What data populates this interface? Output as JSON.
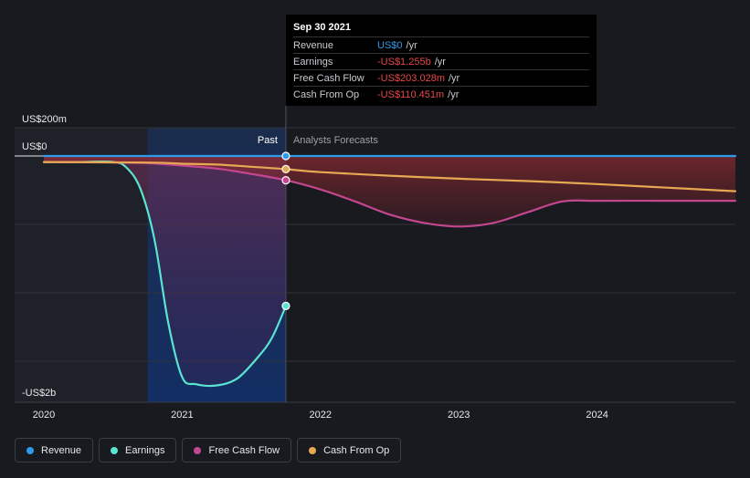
{
  "chart_data": {
    "type": "line",
    "y_axis_labels": [
      "US$200m",
      "US$0",
      "-US$2b"
    ],
    "x_tick_labels": [
      "2020",
      "2021",
      "2022",
      "2023",
      "2024"
    ],
    "region_labels": {
      "past": "Past",
      "forecast": "Analysts Forecasts"
    },
    "xlim": [
      2020.0,
      2025.0
    ],
    "ylim": [
      -2000,
      200
    ],
    "units": "US$m",
    "series": [
      {
        "name": "Revenue",
        "color": "#2e9bea",
        "x": [
          2020.0,
          2021.75,
          2022.0,
          2023.0,
          2024.0,
          2025.0
        ],
        "y": [
          0,
          0,
          0,
          0,
          0,
          0
        ]
      },
      {
        "name": "Earnings",
        "color": "#58e4d0",
        "x": [
          2020.0,
          2020.25,
          2020.5,
          2020.6,
          2020.7,
          2020.8,
          2020.9,
          2021.0,
          2021.1,
          2021.25,
          2021.4,
          2021.55,
          2021.65,
          2021.75
        ],
        "y": [
          -50,
          -50,
          -50,
          -100,
          -280,
          -700,
          -1400,
          -1850,
          -1910,
          -1920,
          -1860,
          -1680,
          -1520,
          -1255
        ]
      },
      {
        "name": "Free Cash Flow",
        "color": "#c3478f",
        "x": [
          2020.0,
          2020.5,
          2020.75,
          2021.0,
          2021.25,
          2021.5,
          2021.75,
          2022.0,
          2022.25,
          2022.5,
          2022.75,
          2023.0,
          2023.25,
          2023.5,
          2023.75,
          2024.0,
          2024.5,
          2025.0
        ],
        "y": [
          -50,
          -55,
          -60,
          -80,
          -105,
          -150,
          -203,
          -280,
          -380,
          -490,
          -560,
          -590,
          -560,
          -470,
          -380,
          -375,
          -375,
          -375
        ]
      },
      {
        "name": "Cash From Op",
        "color": "#e7a852",
        "x": [
          2020.0,
          2020.75,
          2021.0,
          2021.25,
          2021.5,
          2021.75,
          2022.0,
          2022.5,
          2023.0,
          2023.5,
          2024.0,
          2024.5,
          2025.0
        ],
        "y": [
          -50,
          -55,
          -65,
          -72,
          -90,
          -110,
          -135,
          -165,
          -190,
          -210,
          -235,
          -265,
          -295
        ]
      }
    ],
    "tooltip": {
      "date": "Sep 30 2021",
      "rows": [
        {
          "label": "Revenue",
          "value": "US$0",
          "unit": "/yr",
          "color": "#2e9bea"
        },
        {
          "label": "Earnings",
          "value": "-US$1.255b",
          "unit": "/yr",
          "color": "#e64747"
        },
        {
          "label": "Free Cash Flow",
          "value": "-US$203.028m",
          "unit": "/yr",
          "color": "#e64747"
        },
        {
          "label": "Cash From Op",
          "value": "-US$110.451m",
          "unit": "/yr",
          "color": "#e64747"
        }
      ]
    },
    "legend": [
      {
        "name": "Revenue",
        "color": "#2e9bea"
      },
      {
        "name": "Earnings",
        "color": "#58e4d0"
      },
      {
        "name": "Free Cash Flow",
        "color": "#c3478f"
      },
      {
        "name": "Cash From Op",
        "color": "#e7a852"
      }
    ],
    "cursor_x": 2021.75,
    "highlight_start_x": 2020.75
  }
}
